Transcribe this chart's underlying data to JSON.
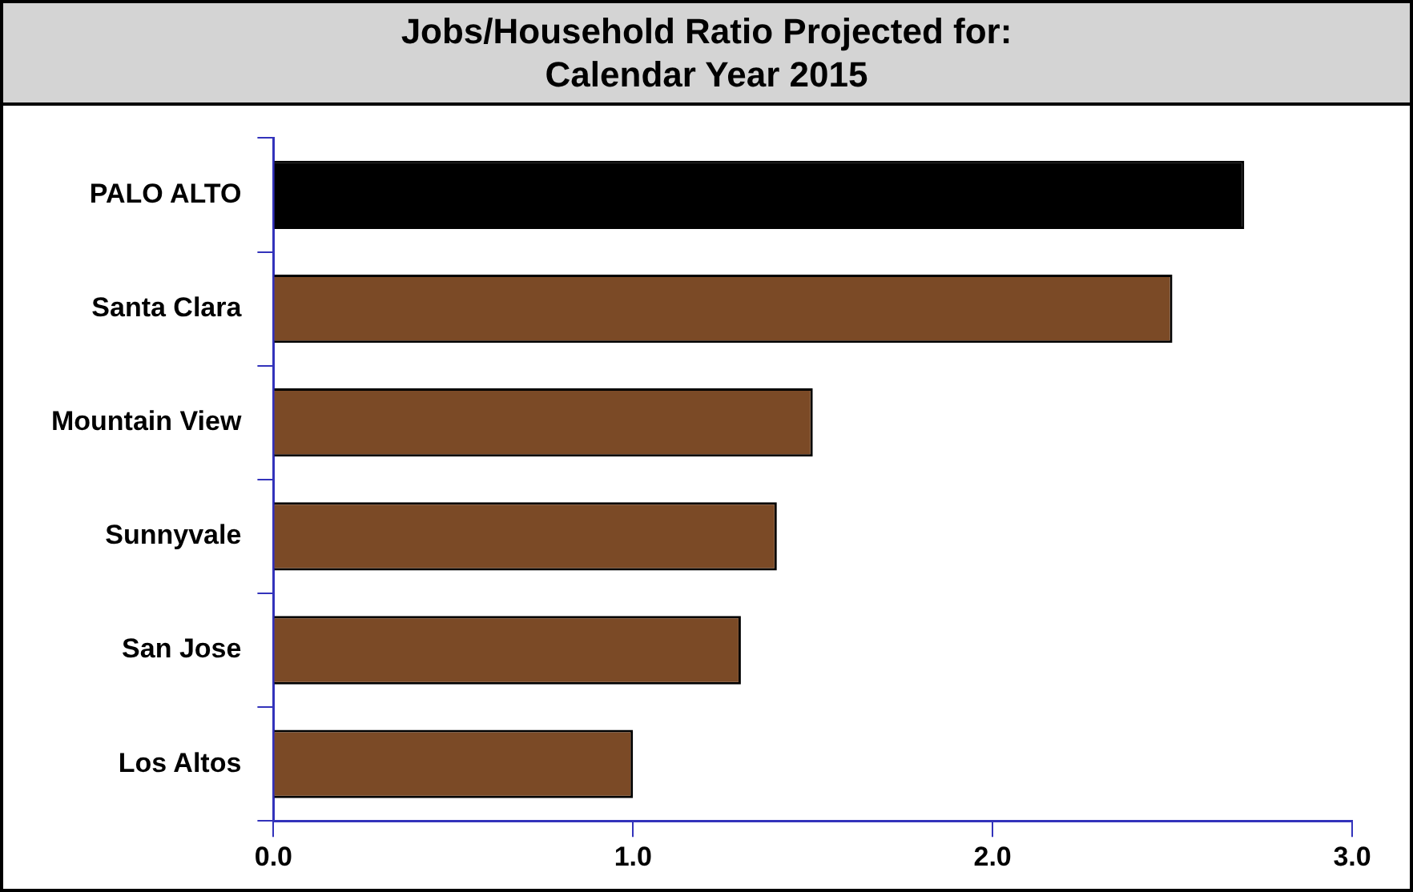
{
  "chart_data": {
    "type": "bar",
    "orientation": "horizontal",
    "title": "Jobs/Household Ratio Projected for:\nCalendar Year 2015",
    "categories": [
      "PALO ALTO",
      "Santa Clara",
      "Mountain View",
      "Sunnyvale",
      "San Jose",
      "Los Altos"
    ],
    "values": [
      2.7,
      2.5,
      1.5,
      1.4,
      1.3,
      1.0
    ],
    "colors": [
      "#000000",
      "#7b4a26",
      "#7b4a26",
      "#7b4a26",
      "#7b4a26",
      "#7b4a26"
    ],
    "xlim": [
      0,
      3
    ],
    "xticks": [
      {
        "value": 0,
        "label": "0.0"
      },
      {
        "value": 1,
        "label": "1.0"
      },
      {
        "value": 2,
        "label": "2.0"
      },
      {
        "value": 3,
        "label": "3.0"
      }
    ],
    "grid": false,
    "legend": false
  }
}
